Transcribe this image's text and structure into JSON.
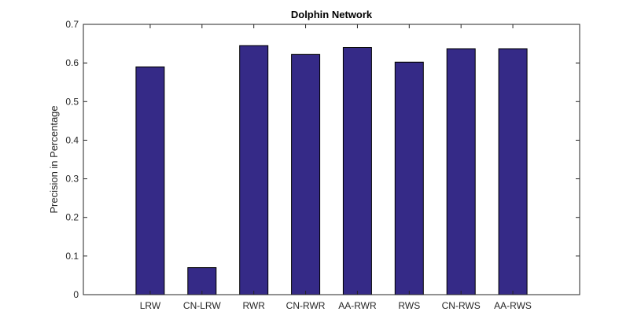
{
  "chart_data": {
    "type": "bar",
    "title": "Dolphin Network",
    "xlabel": "",
    "ylabel": "Precision in Percentage",
    "categories": [
      "LRW",
      "CN-LRW",
      "RWR",
      "CN-RWR",
      "AA-RWR",
      "RWS",
      "CN-RWS",
      "AA-RWS"
    ],
    "values": [
      0.59,
      0.07,
      0.645,
      0.622,
      0.64,
      0.602,
      0.637,
      0.637
    ],
    "ylim": [
      0,
      0.7
    ],
    "yticks": [
      "0",
      "0.1",
      "0.2",
      "0.3",
      "0.4",
      "0.5",
      "0.6",
      "0.7"
    ],
    "grid": false,
    "bar_color": "#352a87",
    "bar_edge_color": "#000000"
  }
}
